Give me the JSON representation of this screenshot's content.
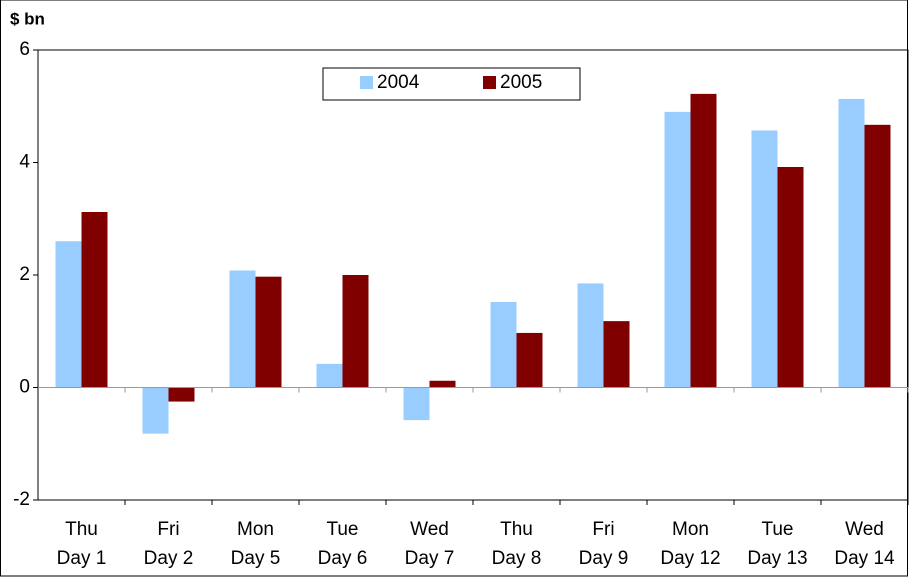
{
  "chart_data": {
    "type": "bar",
    "y_label": "$ bn",
    "categories": [
      [
        "Thu",
        "Day 1"
      ],
      [
        "Fri",
        "Day 2"
      ],
      [
        "Mon",
        "Day 5"
      ],
      [
        "Tue",
        "Day 6"
      ],
      [
        "Wed",
        "Day 7"
      ],
      [
        "Thu",
        "Day 8"
      ],
      [
        "Fri",
        "Day 9"
      ],
      [
        "Mon",
        "Day 12"
      ],
      [
        "Tue",
        "Day 13"
      ],
      [
        "Wed",
        "Day 14"
      ]
    ],
    "series": [
      {
        "name": "2004",
        "color": "#99ccff",
        "values": [
          2.6,
          -0.82,
          2.08,
          0.42,
          -0.58,
          1.52,
          1.85,
          4.9,
          4.57,
          5.13
        ]
      },
      {
        "name": "2005",
        "color": "#800000",
        "values": [
          3.12,
          -0.25,
          1.97,
          2.0,
          0.12,
          0.97,
          1.18,
          5.22,
          3.92,
          4.67
        ]
      }
    ],
    "ylim": [
      -2,
      6
    ],
    "yticks": [
      -2,
      0,
      2,
      4,
      6
    ],
    "grid": false
  }
}
